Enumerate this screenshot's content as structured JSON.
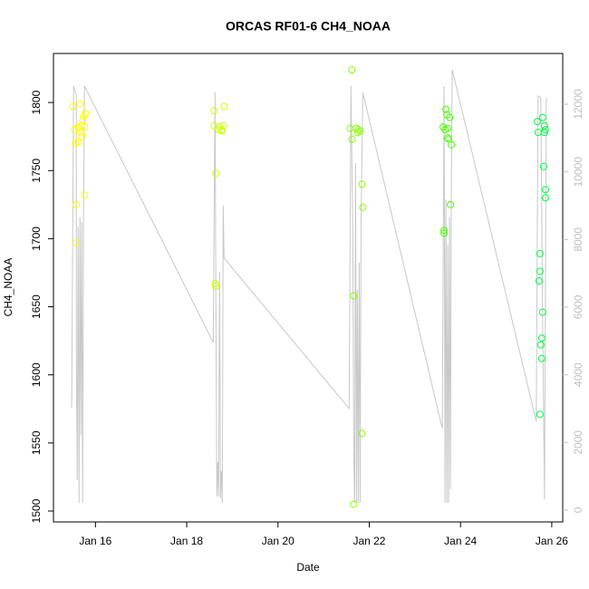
{
  "chart_data": {
    "type": "scatter",
    "title": "ORCAS RF01-6 CH4_NOAA",
    "x_label": "Date",
    "y_label": "CH4_NOAA",
    "xlim": [
      15.08,
      26.24
    ],
    "ylim": [
      1492,
      1836
    ],
    "y2lim": [
      -350,
      13500
    ],
    "xticks": [
      {
        "value": 16,
        "label": "Jan 16"
      },
      {
        "value": 18,
        "label": "Jan 18"
      },
      {
        "value": 20,
        "label": "Jan 20"
      },
      {
        "value": 22,
        "label": "Jan 22"
      },
      {
        "value": 24,
        "label": "Jan 24"
      },
      {
        "value": 26,
        "label": "Jan 26"
      }
    ],
    "yticks": [
      1500,
      1550,
      1600,
      1650,
      1700,
      1750,
      1800
    ],
    "y2ticks": [
      0,
      2000,
      4000,
      6000,
      8000,
      10000,
      12000
    ],
    "y2_color": "#c0c0c0",
    "series": [
      {
        "type": "line",
        "axis": "y2",
        "color": "#c8c8c8",
        "x": [
          15.48,
          15.52,
          15.58,
          15.58,
          15.6,
          15.62,
          15.64,
          15.66,
          15.68,
          15.7,
          15.72,
          15.74,
          15.76,
          18.58,
          18.62,
          18.64,
          18.66,
          18.68,
          18.7,
          18.72,
          18.74,
          18.76,
          18.78,
          18.8,
          18.82,
          21.56,
          21.6,
          21.64,
          21.66,
          21.68,
          21.7,
          21.72,
          21.74,
          21.76,
          21.78,
          21.8,
          21.82,
          21.86,
          23.6,
          23.64,
          23.66,
          23.68,
          23.7,
          23.72,
          23.74,
          23.76,
          23.78,
          23.8,
          23.82,
          25.66,
          25.7,
          25.76,
          25.8,
          25.84,
          25.88
        ],
        "values": [
          3027,
          12537,
          12270,
          4902,
          884,
          8385,
          214,
          8653,
          2223,
          8519,
          214,
          8653,
          12537,
          4956,
          12349,
          5840,
          402,
          1420,
          402,
          7045,
          348,
          1152,
          214,
          9001,
          7447,
          3000,
          12537,
          8117,
          1554,
          214,
          10260,
          214,
          6509,
          214,
          7313,
          214,
          8385,
          12349,
          2411,
          12537,
          214,
          9188,
          214,
          7849,
          214,
          8653,
          616,
          9724,
          13019,
          2625,
          12242,
          12189,
          5706,
          321,
          12189
        ]
      },
      {
        "color": "#ffff00",
        "x": [
          15.5,
          15.54,
          15.56,
          15.62,
          15.58,
          15.58,
          15.66,
          15.64,
          15.68,
          15.7,
          15.72,
          15.74,
          15.76,
          15.78,
          15.76,
          15.62,
          15.68
        ],
        "values": [
          1797,
          1780,
          1770,
          1771,
          1725,
          1697,
          1799,
          1781,
          1783,
          1775,
          1787,
          1790,
          1782,
          1792,
          1732,
          1782,
          1778
        ]
      },
      {
        "color": "#ccff00",
        "x": [
          18.6,
          18.6,
          18.64,
          18.62,
          18.64,
          18.7,
          18.76,
          18.8,
          18.82,
          18.78,
          18.72
        ],
        "values": [
          1794,
          1783,
          1748,
          1667,
          1665,
          1780,
          1780,
          1783,
          1797,
          1779,
          1782
        ]
      },
      {
        "color": "#88ff00",
        "x": [
          21.62,
          21.58,
          21.62,
          21.66,
          21.66,
          21.72,
          21.76,
          21.8,
          21.84,
          21.86,
          21.84,
          21.74
        ],
        "values": [
          1824,
          1781,
          1773,
          1658,
          1505,
          1781,
          1780,
          1779,
          1740,
          1723,
          1557,
          1778
        ]
      },
      {
        "color": "#44ff00",
        "x": [
          23.62,
          23.66,
          23.64,
          23.64,
          23.68,
          23.7,
          23.72,
          23.74,
          23.76,
          23.78,
          23.8,
          23.72
        ],
        "values": [
          1782,
          1780,
          1706,
          1704,
          1795,
          1791,
          1781,
          1773,
          1789,
          1725,
          1769,
          1774
        ]
      },
      {
        "color": "#00ff44",
        "x": [
          25.68,
          25.7,
          25.8,
          25.84,
          25.84,
          25.82,
          25.86,
          25.86,
          25.74,
          25.74,
          25.72,
          25.8,
          25.78,
          25.76,
          25.78,
          25.74,
          25.86
        ],
        "values": [
          1786,
          1778,
          1789,
          1783,
          1778,
          1753,
          1736,
          1730,
          1689,
          1676,
          1669,
          1646,
          1627,
          1622,
          1612,
          1571,
          1780
        ]
      }
    ]
  }
}
